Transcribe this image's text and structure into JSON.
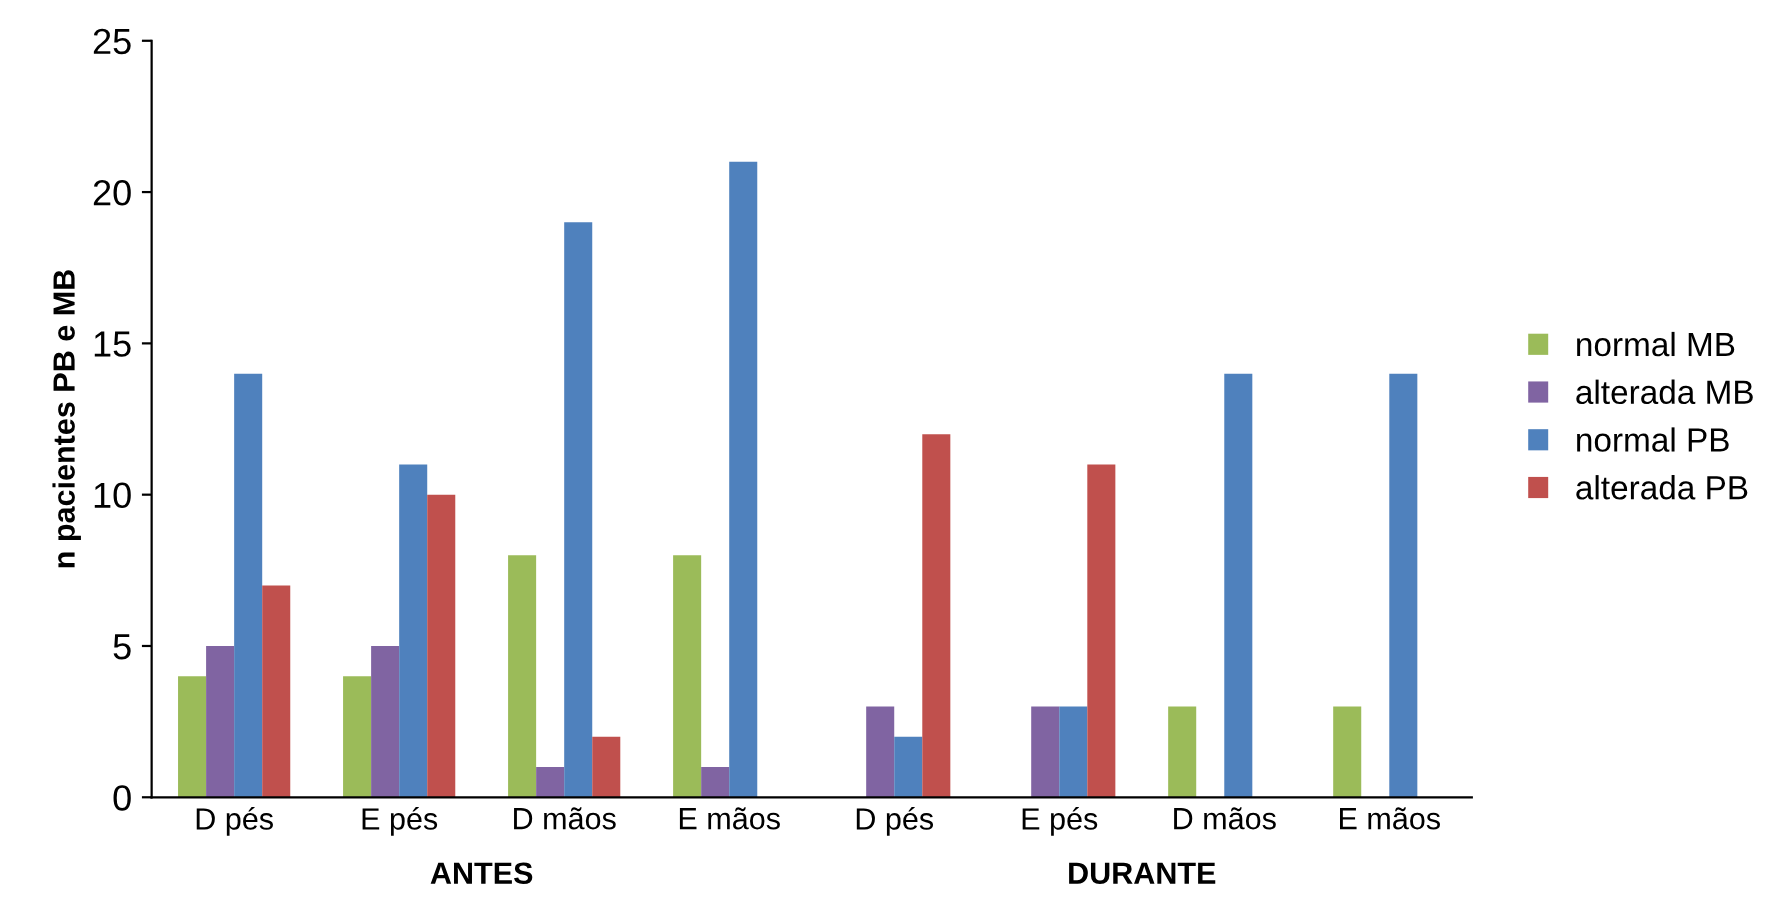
{
  "chart_data": {
    "type": "bar",
    "ylabel": "n pacientes PB e MB",
    "categories": [
      "D pés",
      "E pés",
      "D mãos",
      "E mãos",
      "D pés",
      "E pés",
      "D mãos",
      "E mãos"
    ],
    "series": [
      {
        "name": "normal MB",
        "color": "#9bbb59",
        "values": [
          4,
          4,
          8,
          8,
          0,
          0,
          3,
          3
        ]
      },
      {
        "name": "alterada MB",
        "color": "#8064a2",
        "values": [
          5,
          5,
          1,
          1,
          3,
          3,
          0,
          0
        ]
      },
      {
        "name": "normal PB",
        "color": "#4f81bd",
        "values": [
          14,
          11,
          19,
          21,
          2,
          3,
          14,
          14
        ]
      },
      {
        "name": "alterada PB",
        "color": "#c0504d",
        "values": [
          7,
          10,
          2,
          0,
          12,
          11,
          0,
          0
        ]
      }
    ],
    "annotations": [
      "ANTES",
      "DURANTE"
    ],
    "ylim": [
      0,
      25
    ],
    "yticks": [
      0,
      5,
      10,
      15,
      20,
      25
    ],
    "grid": false,
    "legend": "right"
  }
}
